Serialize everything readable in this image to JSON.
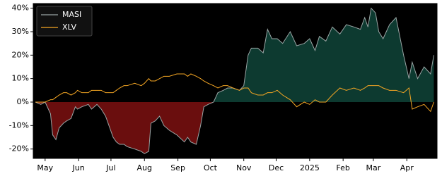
{
  "chart_data": {
    "type": "line",
    "x": [
      -9,
      -4,
      0,
      5,
      7,
      10,
      13,
      17,
      20,
      24,
      28,
      30,
      34,
      40,
      43,
      48,
      52,
      56,
      63,
      66,
      69,
      73,
      76,
      83,
      89,
      92,
      96,
      98,
      102,
      106,
      110,
      115,
      122,
      129,
      132,
      135,
      140,
      144,
      147,
      151,
      156,
      160,
      165,
      169,
      174,
      180,
      184,
      188,
      191,
      197,
      202,
      206,
      210,
      215,
      220,
      227,
      233,
      240,
      245,
      250,
      254,
      260,
      266,
      273,
      279,
      286,
      292,
      296,
      299,
      302,
      306,
      309,
      313,
      319,
      325,
      332,
      337,
      340,
      345,
      351,
      357,
      360
    ],
    "series": [
      {
        "name": "MASI",
        "color": "#9aa5a5",
        "positive_fill": "#0d3a30",
        "negative_fill": "#6a0e0e",
        "values": [
          0,
          -1,
          0,
          -5,
          -14,
          -16,
          -11,
          -9,
          -8,
          -7,
          -2,
          -3,
          -2,
          -1,
          -3,
          -1,
          -3,
          -6,
          -15,
          -17,
          -18,
          -18,
          -19,
          -20,
          -21,
          -22,
          -21,
          -9,
          -8,
          -6,
          -10,
          -12,
          -14,
          -17,
          -15,
          -17,
          -18,
          -10,
          -2,
          -1,
          0,
          4,
          5,
          6,
          6,
          5,
          7,
          20,
          23,
          23,
          21,
          31,
          27,
          27,
          25,
          30,
          24,
          25,
          27,
          22,
          28,
          26,
          32,
          29,
          33,
          32,
          31,
          36,
          32,
          40,
          38,
          30,
          27,
          33,
          36,
          20,
          10,
          17,
          10,
          15,
          12,
          20
        ]
      },
      {
        "name": "XLV",
        "color": "#f5a623",
        "values": [
          0,
          0,
          0,
          1,
          1,
          2,
          3,
          4,
          4,
          3,
          4,
          5,
          4,
          4,
          5,
          5,
          5,
          4,
          4,
          5,
          6,
          7,
          7,
          8,
          7,
          8,
          10,
          9,
          9,
          10,
          11,
          11,
          12,
          12,
          11,
          12,
          11,
          10,
          9,
          8,
          7,
          6,
          7,
          7,
          6,
          5,
          6,
          6,
          4,
          3,
          3,
          4,
          4,
          5,
          3,
          1,
          -2,
          0,
          -1,
          1,
          0,
          0,
          3,
          6,
          5,
          6,
          5,
          6,
          7,
          7,
          7,
          7,
          6,
          5,
          5,
          4,
          6,
          -3,
          -2,
          -1,
          -4,
          0
        ]
      }
    ],
    "xlim": [
      -11,
      363
    ],
    "xticks": [
      {
        "value": 0,
        "label": "May"
      },
      {
        "value": 31,
        "label": "Jun"
      },
      {
        "value": 61,
        "label": "Jul"
      },
      {
        "value": 92,
        "label": "Aug"
      },
      {
        "value": 123,
        "label": "Sep"
      },
      {
        "value": 153,
        "label": "Oct"
      },
      {
        "value": 184,
        "label": "Nov"
      },
      {
        "value": 214,
        "label": "Dec"
      },
      {
        "value": 245,
        "label": "2025"
      },
      {
        "value": 276,
        "label": "Feb"
      },
      {
        "value": 304,
        "label": "Mar"
      },
      {
        "value": 335,
        "label": "Apr"
      }
    ],
    "ylim": [
      -24,
      42
    ],
    "yticks": [
      {
        "value": -20,
        "label": "-20%"
      },
      {
        "value": -10,
        "label": "-10%"
      },
      {
        "value": 0,
        "label": "0%"
      },
      {
        "value": 10,
        "label": "10%"
      },
      {
        "value": 20,
        "label": "20%"
      },
      {
        "value": 30,
        "label": "30%"
      },
      {
        "value": 40,
        "label": "40%"
      }
    ],
    "legend": "upper left",
    "background": "#000000"
  }
}
